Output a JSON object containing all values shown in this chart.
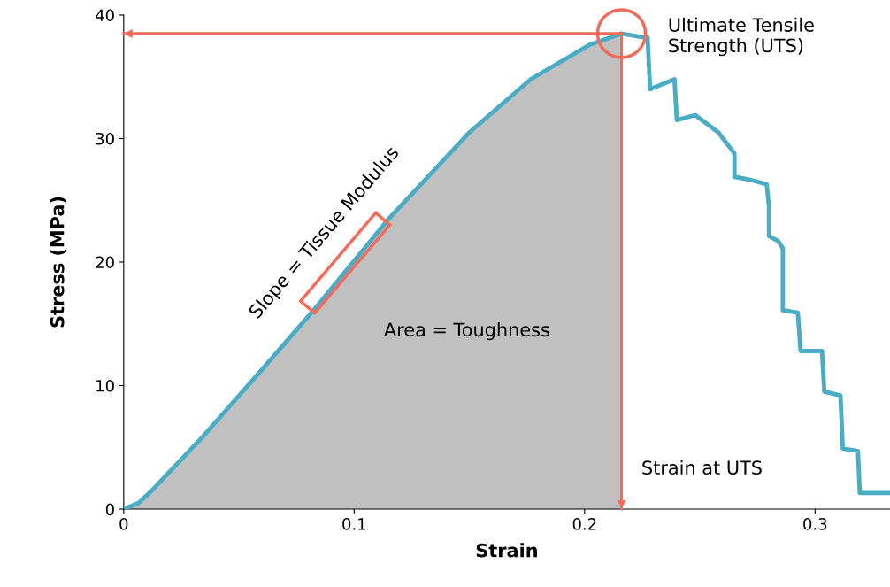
{
  "chart_data": {
    "type": "line",
    "xlabel": "Strain",
    "ylabel": "Stress (MPa)",
    "series": [
      {
        "type": "area",
        "color": "#c0c0c0",
        "x": [
          0,
          0.0065,
          0.0127,
          0.0345,
          0.06,
          0.0833,
          0.115,
          0.15,
          0.1766,
          0.2023,
          0.216
        ],
        "values": [
          0,
          0.5,
          1.6,
          5.9,
          11.3,
          16.3,
          23.5,
          30.5,
          34.8,
          37.6,
          38.5
        ]
      },
      {
        "color": "#4bacc6",
        "x": [
          0,
          0.0065,
          0.0127,
          0.0345,
          0.06,
          0.0833,
          0.115,
          0.15,
          0.1766,
          0.2023,
          0.216,
          0.2253,
          0.2273,
          0.2284,
          0.239,
          0.24,
          0.248,
          0.258,
          0.265,
          0.265,
          0.271,
          0.279,
          0.28,
          0.28,
          0.284,
          0.286,
          0.286,
          0.2925,
          0.2937,
          0.303,
          0.304,
          0.311,
          0.312,
          0.3186,
          0.3194,
          0.332
        ],
        "values": [
          0,
          0.5,
          1.6,
          5.9,
          11.3,
          16.3,
          23.5,
          30.5,
          34.8,
          37.6,
          38.5,
          38.2,
          38.2,
          34.0,
          34.8,
          31.5,
          31.9,
          30.5,
          28.8,
          26.9,
          26.7,
          26.3,
          24.5,
          22.1,
          21.7,
          21.1,
          16.1,
          15.9,
          12.8,
          12.8,
          9.5,
          9.2,
          4.9,
          4.7,
          1.3,
          1.3
        ]
      },
      {
        "type": "line",
        "color": "#f26b5b",
        "x": [
          0.216,
          0
        ],
        "values": [
          38.5,
          38.5
        ]
      },
      {
        "type": "line",
        "color": "#f26b5b",
        "x": [
          0.216,
          0.216
        ],
        "values": [
          38.5,
          0
        ]
      }
    ],
    "xlim": [
      0,
      0.3325
    ],
    "xticks": [
      0,
      0.1,
      0.2,
      0.3
    ],
    "ylim": [
      0,
      40
    ],
    "yticks": [
      0,
      10,
      20,
      30,
      40
    ],
    "grid": false,
    "legend": false,
    "marker": "none",
    "line_style": "solid",
    "annotations": [
      "Ultimate Tensile\nStrength (UTS)",
      "Strain at UTS",
      {
        "text": "Slope = Tissue Modulus",
        "x": 0.096,
        "y": 19.9
      },
      "Area = Toughness"
    ]
  }
}
